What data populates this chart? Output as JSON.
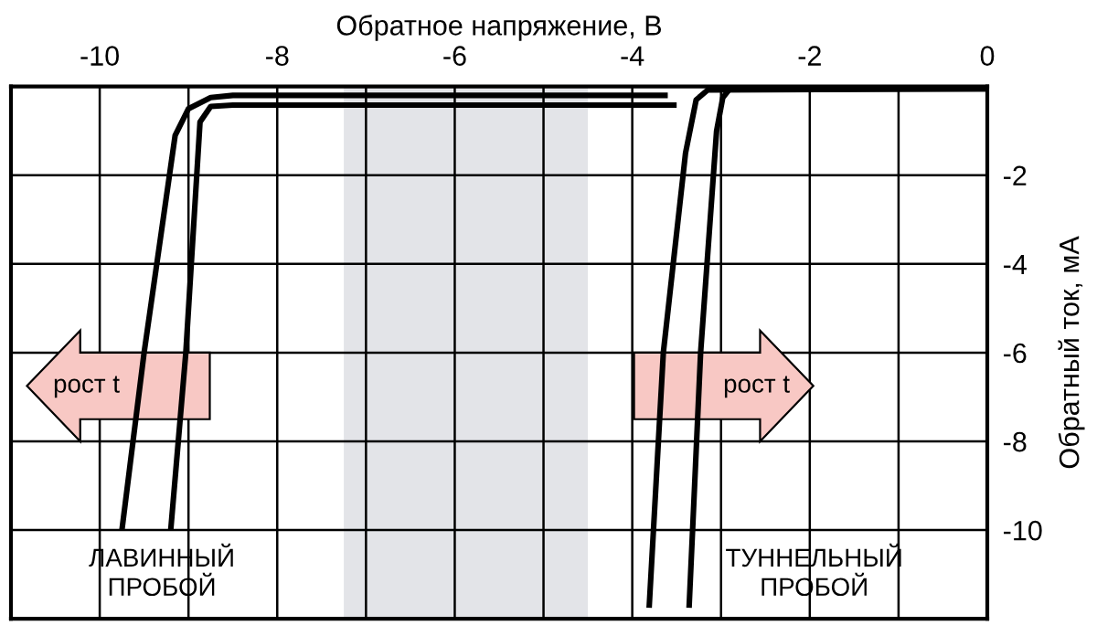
{
  "chart_data": {
    "type": "line",
    "xlabel": "Обратное напряжение, В",
    "ylabel": "Обратный ток, мА",
    "xlim": [
      -11,
      0
    ],
    "ylim": [
      -12,
      0
    ],
    "xticks": [
      {
        "value": -11,
        "label": null
      },
      -10,
      {
        "value": -9,
        "label": null
      },
      -8,
      {
        "value": -7,
        "label": null
      },
      -6,
      {
        "value": -5,
        "label": null
      },
      -4,
      {
        "value": -3,
        "label": null
      },
      -2,
      {
        "value": -1,
        "label": null
      },
      0
    ],
    "yticks": [
      -10,
      -8,
      -6,
      -4,
      -2
    ],
    "grid": true,
    "legend": false,
    "marker": "none",
    "line_style": "solid",
    "bands": [
      {
        "axis": "x",
        "from": -7.25,
        "to": -4.5,
        "color": "#e3e4e8"
      }
    ],
    "series": [
      {
        "color": "#000000",
        "x": [
          -9.75,
          -9.5,
          -9.15,
          -9.0,
          -8.75,
          -8.5,
          -3.6
        ],
        "values": [
          -10,
          -6,
          -1.1,
          -0.5,
          -0.25,
          -0.2,
          -0.2
        ]
      },
      {
        "color": "#000000",
        "x": [
          -9.2,
          -9.03,
          -8.87,
          -8.75,
          -8.5,
          -3.5
        ],
        "values": [
          -10,
          -6,
          -0.8,
          -0.45,
          -0.42,
          -0.42
        ]
      },
      {
        "color": "#000000",
        "x": [
          -3.81,
          -3.65,
          -3.4,
          -3.28,
          -3.15,
          0
        ],
        "values": [
          -11.75,
          -6,
          -1.5,
          -0.3,
          -0.08,
          -0.05
        ]
      },
      {
        "color": "#000000",
        "x": [
          -3.36,
          -3.23,
          -3.05,
          -2.98,
          -2.9,
          0
        ],
        "values": [
          -11.75,
          -6,
          -1,
          -0.25,
          -0.05,
          -0.05
        ]
      }
    ],
    "annotations": [
      "рост t",
      "рост t",
      "ЛАВИННЫЙ\nПРОБОЙ",
      "ТУННЕЛЬНЫЙ\nПРОБОЙ"
    ]
  }
}
